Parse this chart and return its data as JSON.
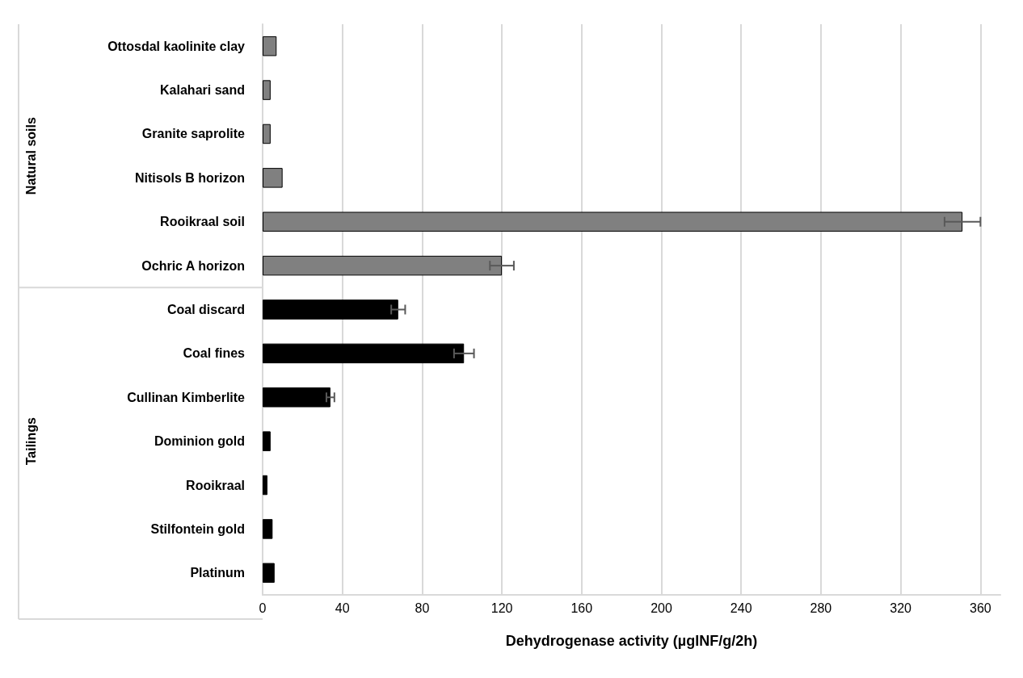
{
  "chart_data": {
    "type": "bar",
    "orientation": "horizontal",
    "xlabel": "Dehydrogenase activity (µgINF/g/2h)",
    "categories": [
      "Ottosdal kaolinite clay",
      "Kalahari sand",
      "Granite saprolite",
      "Nitisols B horizon",
      "Rooikraal soil",
      "Ochric A horizon",
      "Coal discard",
      "Coal fines",
      "Cullinan Kimberlite",
      "Dominion gold",
      "Rooikraal",
      "Stilfontein gold",
      "Platinum"
    ],
    "values": [
      7,
      4,
      4,
      10,
      351,
      120,
      68,
      101,
      34,
      4,
      2.4,
      5,
      6
    ],
    "errors": [
      null,
      null,
      null,
      null,
      9,
      6,
      3.5,
      5,
      2,
      null,
      null,
      null,
      null
    ],
    "colors": [
      "#808080",
      "#808080",
      "#808080",
      "#808080",
      "#808080",
      "#808080",
      "#000000",
      "#000000",
      "#000000",
      "#000000",
      "#000000",
      "#000000",
      "#000000"
    ],
    "annotations": [
      "Natural soils",
      "Tailings"
    ],
    "xlim": [
      0,
      370
    ],
    "xticks": [
      0,
      40,
      80,
      120,
      160,
      200,
      240,
      280,
      320,
      360
    ],
    "grid": "x"
  }
}
